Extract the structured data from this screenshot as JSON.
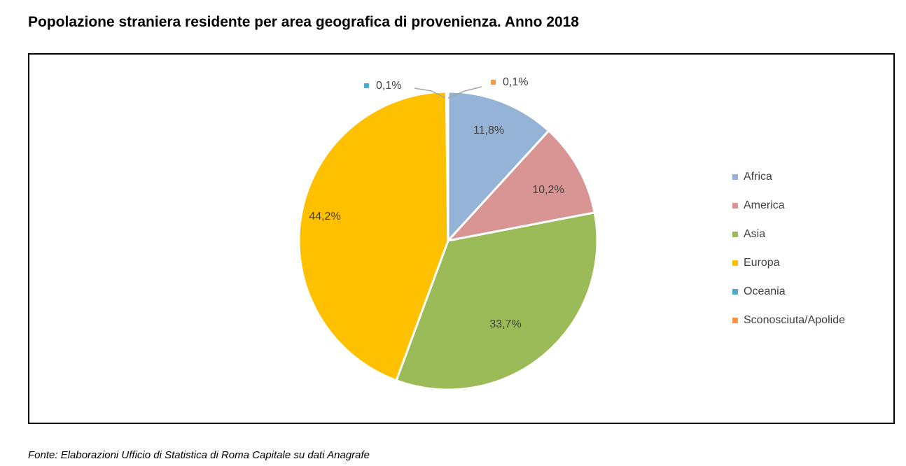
{
  "title": "Popolazione straniera residente per area geografica di provenienza. Anno 2018",
  "source": "Fonte: Elaborazioni Ufficio di Statistica di Roma Capitale su dati Anagrafe",
  "chart_data": {
    "type": "pie",
    "title": "",
    "legend_position": "right",
    "slices": [
      {
        "name": "Africa",
        "value": 11.8,
        "label": "11,8%",
        "color": "#95b3d7"
      },
      {
        "name": "America",
        "value": 10.2,
        "label": "10,2%",
        "color": "#d99594"
      },
      {
        "name": "Asia",
        "value": 33.7,
        "label": "33,7%",
        "color": "#9bbb59"
      },
      {
        "name": "Europa",
        "value": 44.2,
        "label": "44,2%",
        "color": "#ffc000"
      },
      {
        "name": "Oceania",
        "value": 0.1,
        "label": "0,1%",
        "color": "#4bacc6"
      },
      {
        "name": "Sconosciuta/Apolide",
        "value": 0.1,
        "label": "0,1%",
        "color": "#f79646"
      }
    ]
  }
}
